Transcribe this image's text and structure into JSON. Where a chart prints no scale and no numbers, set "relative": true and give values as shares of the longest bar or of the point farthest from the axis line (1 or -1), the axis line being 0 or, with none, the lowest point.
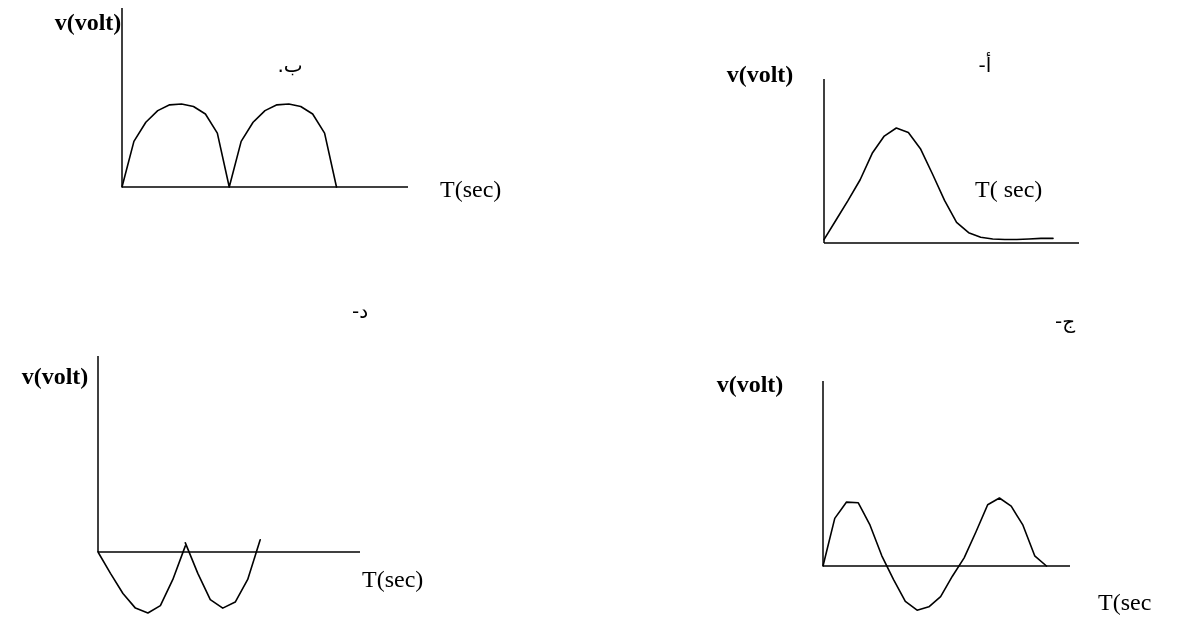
{
  "chart_data": [
    {
      "type": "line",
      "title": "ب.",
      "xlabel": "T(sec)",
      "ylabel": "v(volt)",
      "relative": true,
      "categories": [
        null,
        null,
        null,
        null,
        null,
        null,
        null,
        null,
        null,
        null,
        null,
        null,
        null,
        null,
        null,
        null,
        null,
        null,
        null,
        null,
        null,
        null,
        null,
        null,
        null
      ],
      "series": [
        {
          "color": "#000000",
          "values": [
            0,
            0.55,
            0.78,
            0.92,
            0.99,
            1.0,
            0.97,
            0.88,
            0.65,
            0,
            0.55,
            0.78,
            0.92,
            0.99,
            1.0,
            0.97,
            0.88,
            0.65,
            0,
            null,
            null,
            null,
            null,
            null,
            null
          ]
        }
      ]
    },
    {
      "type": "line",
      "title": "أ-",
      "xlabel": "T( sec)",
      "ylabel": "v(volt)",
      "relative": true,
      "categories": [
        null,
        null,
        null,
        null,
        null,
        null,
        null,
        null,
        null,
        null,
        null,
        null,
        null,
        null,
        null,
        null,
        null,
        null,
        null,
        null
      ],
      "series": [
        {
          "color": "#000000",
          "values": [
            0.03,
            0.2,
            0.37,
            0.55,
            0.78,
            0.93,
            1.0,
            0.96,
            0.82,
            0.6,
            0.37,
            0.18,
            0.09,
            0.05,
            0.035,
            0.03,
            0.03,
            0.035,
            0.04,
            0.04
          ]
        }
      ]
    },
    {
      "type": "line",
      "title": "د-",
      "xlabel": "T(sec)",
      "ylabel": "v(volt)",
      "relative": true,
      "categories": [
        null,
        null,
        null,
        null,
        null,
        null,
        null,
        null,
        null,
        null,
        null,
        null,
        null,
        null,
        null,
        null,
        null,
        null,
        null,
        null,
        null,
        null
      ],
      "series": [
        {
          "color": "#000000",
          "values": [
            0,
            -0.35,
            -0.68,
            -0.92,
            -1.0,
            -0.88,
            -0.45,
            0.1,
            null,
            null,
            null,
            null,
            null,
            null,
            null,
            null,
            null,
            null,
            null,
            null,
            null,
            null
          ]
        },
        {
          "color": "#000000",
          "values": [
            null,
            null,
            null,
            null,
            null,
            null,
            null,
            0.15,
            -0.35,
            -0.78,
            -0.92,
            -0.82,
            -0.45,
            0.2,
            null,
            null,
            null,
            null,
            null,
            null,
            null,
            null
          ]
        }
      ]
    },
    {
      "type": "line",
      "title": "ج-",
      "xlabel": "T(sec",
      "ylabel": "v(volt)",
      "relative": true,
      "categories": [
        null,
        null,
        null,
        null,
        null,
        null,
        null,
        null,
        null,
        null,
        null,
        null,
        null,
        null,
        null,
        null,
        null,
        null,
        null,
        null,
        null,
        null
      ],
      "series": [
        {
          "color": "#000000",
          "values": [
            0,
            0.7,
            0.94,
            0.93,
            0.6,
            0.15,
            -0.2,
            -0.52,
            -0.65,
            -0.6,
            -0.45,
            -0.15,
            0.12,
            0.5,
            0.9,
            1.0,
            0.88,
            0.6,
            0.15,
            0,
            null,
            null
          ]
        }
      ]
    }
  ]
}
